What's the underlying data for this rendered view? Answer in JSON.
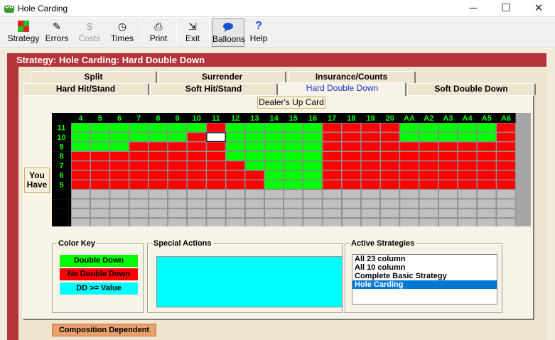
{
  "window": {
    "title": "Hole Carding",
    "minimize_glyph": "─",
    "maximize_glyph": "☐",
    "close_glyph": "✕"
  },
  "toolbar": {
    "buttons": [
      {
        "label": "Strategy",
        "icon": "strategy-icon",
        "glyph": "▦",
        "state": "active"
      },
      {
        "label": "Errors",
        "icon": "pencil-icon",
        "glyph": "✎",
        "state": "normal"
      },
      {
        "label": "Costs",
        "icon": "dollar-icon",
        "glyph": "$",
        "state": "disabled"
      },
      {
        "label": "Times",
        "icon": "clock-icon",
        "glyph": "◷",
        "state": "normal"
      },
      {
        "label": "Print",
        "icon": "printer-icon",
        "glyph": "⎙",
        "state": "normal"
      },
      {
        "label": "Exit",
        "icon": "exit-icon",
        "glyph": "⇲",
        "state": "normal"
      },
      {
        "label": "Balloons",
        "icon": "speech-balloon-icon",
        "glyph": "💬",
        "state": "active"
      },
      {
        "label": "Help",
        "icon": "help-icon",
        "glyph": "?",
        "state": "normal"
      }
    ]
  },
  "panel": {
    "header": "Strategy: Hole Carding: Hard Double Down"
  },
  "tabs": {
    "back_row": [
      "Split",
      "Surrender",
      "Insurance/Counts"
    ],
    "front_row": [
      "Hard Hit/Stand",
      "Soft Hit/Stand",
      "Hard Double Down",
      "Soft Double Down"
    ],
    "selected": "Hard Double Down"
  },
  "grid": {
    "dealer_label": "Dealer's Up Card",
    "you_have_line1": "You",
    "you_have_line2": "Have",
    "columns": [
      "4",
      "5",
      "6",
      "7",
      "8",
      "9",
      "10",
      "11",
      "12",
      "13",
      "14",
      "15",
      "16",
      "17",
      "18",
      "19",
      "20",
      "AA",
      "A2",
      "A3",
      "A4",
      "A5",
      "A6"
    ],
    "rows": [
      {
        "label": "11",
        "cells": "GGGGGGGRGGGGGRRRRGGGGGR"
      },
      {
        "label": "10",
        "cells": "GGGGGGRWGGGGGRRRRGGGGGR"
      },
      {
        "label": "9",
        "cells": "GGGRRRRRGGGGGRRRRRRRRRR"
      },
      {
        "label": "8",
        "cells": "RRRRRRRRGGGGGRRRRRRRRRR"
      },
      {
        "label": "7",
        "cells": "RRRRRRRRRGGGGRRRRRRRRRR"
      },
      {
        "label": "6",
        "cells": "RRRRRRRRRRGGGRRRRRRRRRR"
      },
      {
        "label": "5",
        "cells": "RRRRRRRRRRGGGRRRRRRRRRR"
      },
      {
        "label": "",
        "cells": "EEEEEEEEEEEEEEEEEEEEEEE"
      },
      {
        "label": "",
        "cells": "EEEEEEEEEEEEEEEEEEEEEEE"
      },
      {
        "label": "",
        "cells": "EEEEEEEEEEEEEEEEEEEEEEE"
      },
      {
        "label": "",
        "cells": "EEEEEEEEEEEEEEEEEEEEEEE"
      }
    ],
    "colors": {
      "G": "#00ff00",
      "R": "#ff0000",
      "W": "#ffffff",
      "E": "#c0c0c0",
      "header_bg": "#000000",
      "header_text": "#00ff00"
    }
  },
  "color_key": {
    "title": "Color Key",
    "items": [
      {
        "label": "Double Down",
        "color": "#00ff00"
      },
      {
        "label": "No Double Down",
        "color": "#ff0000"
      },
      {
        "label": "DD >= Value",
        "color": "#00ffff"
      }
    ]
  },
  "special_actions": {
    "title": "Special Actions"
  },
  "active_strategies": {
    "title": "Active Strategies",
    "items": [
      "All 23 column",
      "All 10 column",
      "Complete Basic Strategy",
      "Hole Carding"
    ],
    "selected": "Hole Carding"
  },
  "composition_button": "Composition Dependent"
}
